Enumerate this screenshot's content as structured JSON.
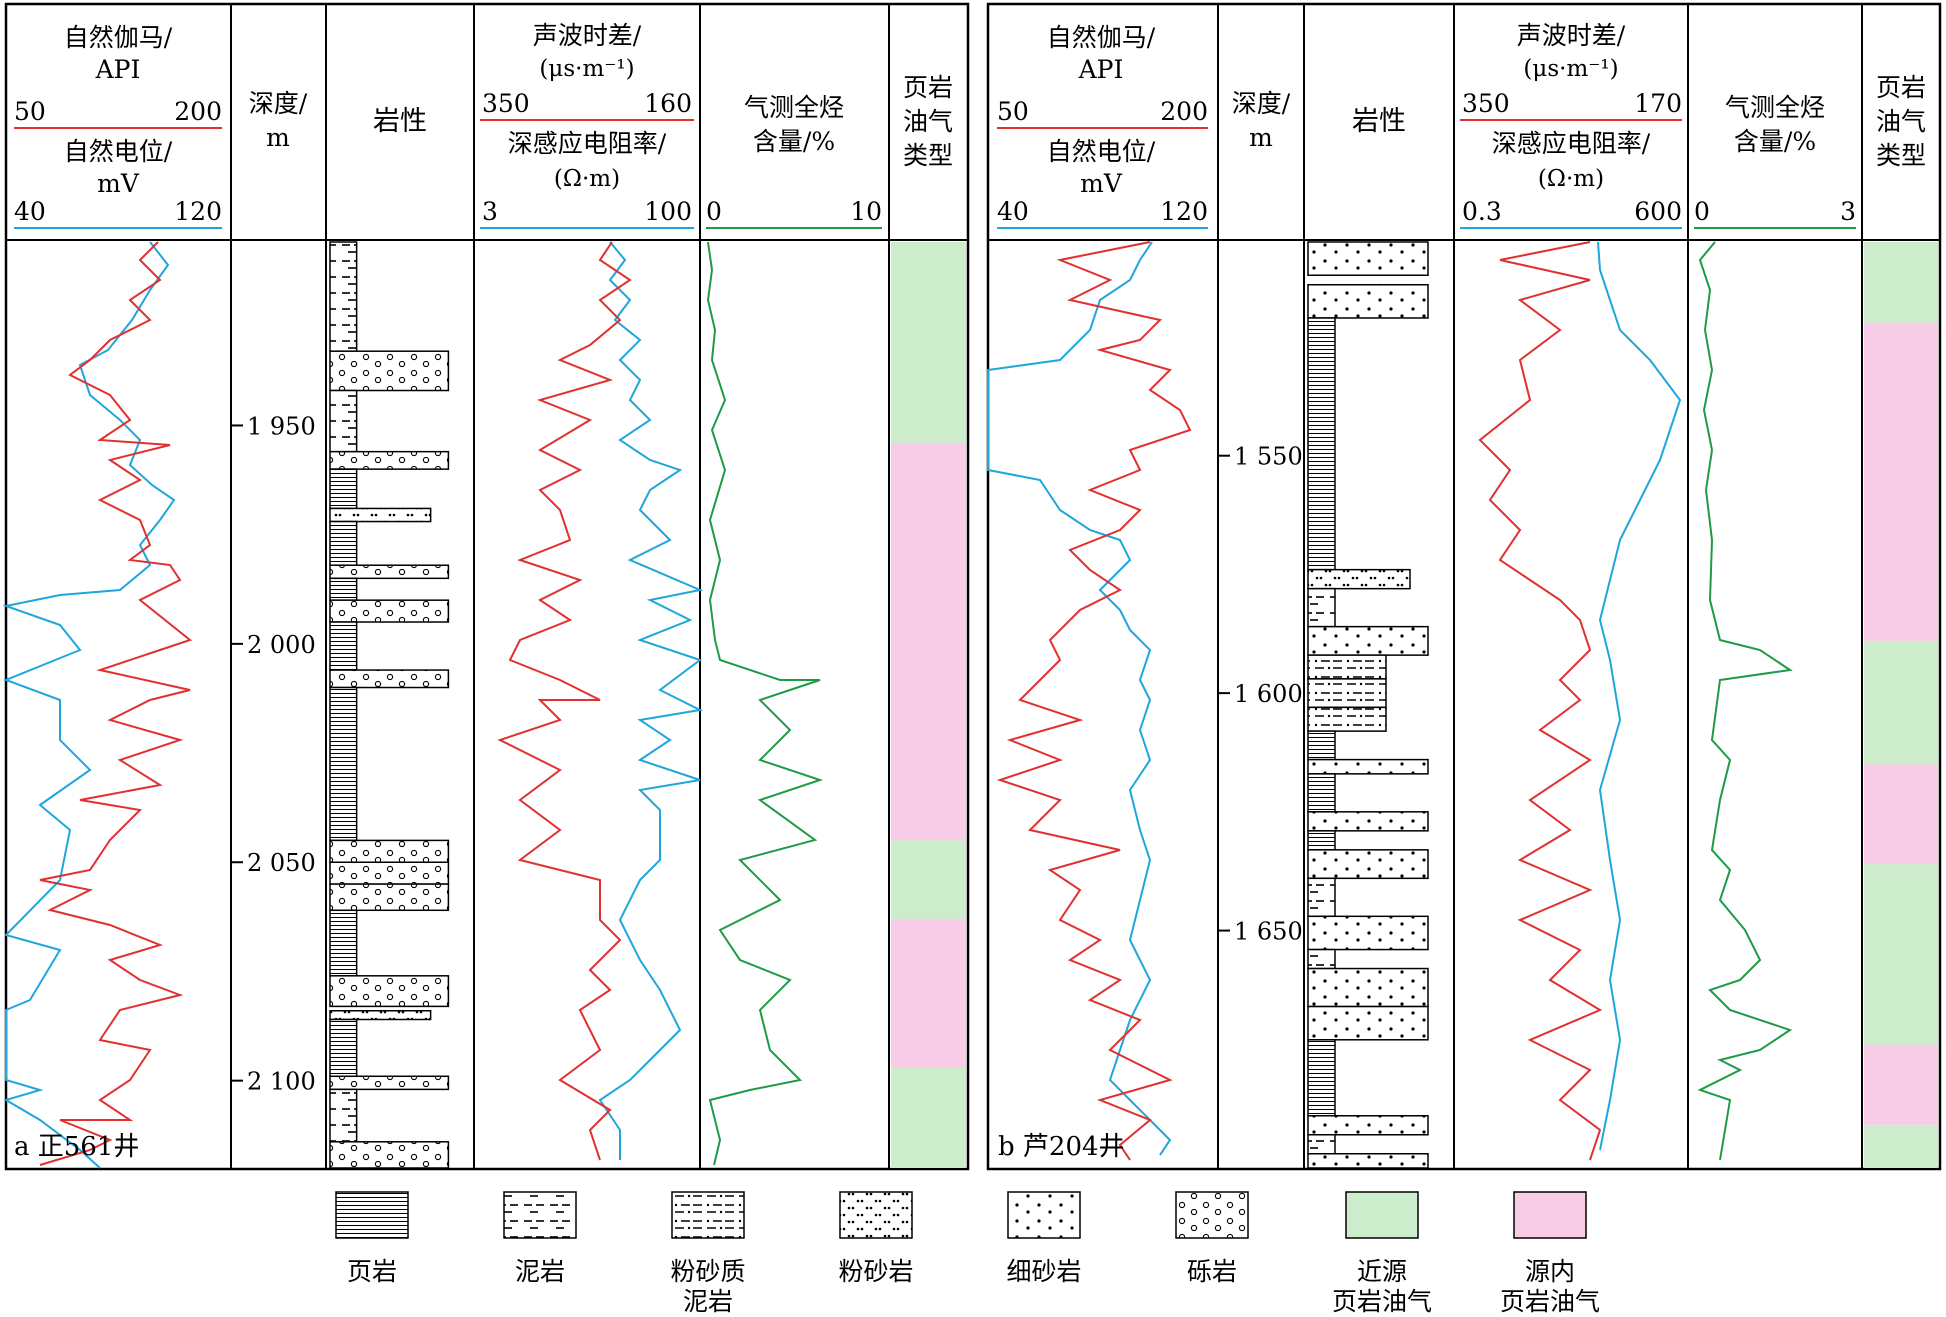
{
  "panels": [
    {
      "label": "a 正561井",
      "headers": {
        "gamma_title": [
          "自然伽马/",
          "API"
        ],
        "gamma_range": [
          "50",
          "200"
        ],
        "sp_title": [
          "自然电位/",
          "mV"
        ],
        "sp_range": [
          "40",
          "120"
        ],
        "depth_title": [
          "深度/",
          "m"
        ],
        "lith_title": "岩性",
        "ac_title": [
          "声波时差/",
          "(μs·m⁻¹)"
        ],
        "ac_range": [
          "350",
          "160"
        ],
        "res_title": [
          "深感应电阻率/",
          "(Ω·m)"
        ],
        "res_range": [
          "3",
          "100"
        ],
        "gas_title": [
          "气测全烃",
          "含量/%"
        ],
        "gas_range": [
          "0",
          "10"
        ],
        "type_title": [
          "页岩",
          "油气",
          "类型"
        ]
      },
      "depth_ticks": [
        "1 950",
        "2 000",
        "2 050",
        "2 100"
      ],
      "depth_range": [
        1908,
        2120
      ],
      "depth_values": [
        1950,
        2000,
        2050,
        2100
      ],
      "lithology": [
        {
          "top": 1908,
          "bottom": 1933,
          "rock": "泥岩"
        },
        {
          "top": 1933,
          "bottom": 1942,
          "rock": "砾岩"
        },
        {
          "top": 1942,
          "bottom": 1956,
          "rock": "泥岩"
        },
        {
          "top": 1956,
          "bottom": 1960,
          "rock": "砾岩"
        },
        {
          "top": 1960,
          "bottom": 1969,
          "rock": "页岩"
        },
        {
          "top": 1969,
          "bottom": 1972,
          "rock": "粉砂岩"
        },
        {
          "top": 1972,
          "bottom": 1982,
          "rock": "页岩"
        },
        {
          "top": 1982,
          "bottom": 1985,
          "rock": "砾岩"
        },
        {
          "top": 1985,
          "bottom": 1990,
          "rock": "页岩"
        },
        {
          "top": 1990,
          "bottom": 1995,
          "rock": "砾岩"
        },
        {
          "top": 1995,
          "bottom": 2006,
          "rock": "页岩"
        },
        {
          "top": 2006,
          "bottom": 2010,
          "rock": "砾岩"
        },
        {
          "top": 2010,
          "bottom": 2045,
          "rock": "页岩"
        },
        {
          "top": 2045,
          "bottom": 2050,
          "rock": "砾岩"
        },
        {
          "top": 2050,
          "bottom": 2055,
          "rock": "砾岩"
        },
        {
          "top": 2055,
          "bottom": 2061,
          "rock": "砾岩"
        },
        {
          "top": 2061,
          "bottom": 2076,
          "rock": "页岩"
        },
        {
          "top": 2076,
          "bottom": 2083,
          "rock": "砾岩"
        },
        {
          "top": 2084,
          "bottom": 2086,
          "rock": "粉砂岩"
        },
        {
          "top": 2086,
          "bottom": 2099,
          "rock": "页岩"
        },
        {
          "top": 2099,
          "bottom": 2102,
          "rock": "砾岩"
        },
        {
          "top": 2102,
          "bottom": 2114,
          "rock": "泥岩"
        },
        {
          "top": 2114,
          "bottom": 2120,
          "rock": "砾岩"
        }
      ],
      "oil_types": [
        {
          "top": 1908,
          "bottom": 1954,
          "kind": "近源"
        },
        {
          "top": 1954,
          "bottom": 2045,
          "kind": "源内"
        },
        {
          "top": 2045,
          "bottom": 2063,
          "kind": "近源"
        },
        {
          "top": 2063,
          "bottom": 2097,
          "kind": "源内"
        },
        {
          "top": 2097,
          "bottom": 2120,
          "kind": "近源"
        }
      ]
    },
    {
      "label": "b 芦204井",
      "headers": {
        "gamma_title": [
          "自然伽马/",
          "API"
        ],
        "gamma_range": [
          "50",
          "200"
        ],
        "sp_title": [
          "自然电位/",
          "mV"
        ],
        "sp_range": [
          "40",
          "120"
        ],
        "depth_title": [
          "深度/",
          "m"
        ],
        "lith_title": "岩性",
        "ac_title": [
          "声波时差/",
          "(μs·m⁻¹)"
        ],
        "ac_range": [
          "350",
          "170"
        ],
        "res_title": [
          "深感应电阻率/",
          "(Ω·m)"
        ],
        "res_range": [
          "0.3",
          "600"
        ],
        "gas_title": [
          "气测全烃",
          "含量/%"
        ],
        "gas_range": [
          "0",
          "3"
        ],
        "type_title": [
          "页岩",
          "油气",
          "类型"
        ]
      },
      "depth_ticks": [
        "1 550",
        "1 600",
        "1 650"
      ],
      "depth_range": [
        1505,
        1700
      ],
      "depth_values": [
        1550,
        1600,
        1650
      ],
      "lithology": [
        {
          "top": 1505,
          "bottom": 1512,
          "rock": "细砂岩"
        },
        {
          "top": 1514,
          "bottom": 1521,
          "rock": "细砂岩"
        },
        {
          "top": 1521,
          "bottom": 1574,
          "rock": "页岩"
        },
        {
          "top": 1574,
          "bottom": 1578,
          "rock": "粉砂岩"
        },
        {
          "top": 1578,
          "bottom": 1586,
          "rock": "泥岩"
        },
        {
          "top": 1586,
          "bottom": 1592,
          "rock": "细砂岩"
        },
        {
          "top": 1592,
          "bottom": 1597,
          "rock": "粉砂质泥岩"
        },
        {
          "top": 1597,
          "bottom": 1603,
          "rock": "粉砂质泥岩"
        },
        {
          "top": 1603,
          "bottom": 1608,
          "rock": "粉砂质泥岩"
        },
        {
          "top": 1608,
          "bottom": 1614,
          "rock": "页岩"
        },
        {
          "top": 1614,
          "bottom": 1617,
          "rock": "细砂岩"
        },
        {
          "top": 1617,
          "bottom": 1625,
          "rock": "页岩"
        },
        {
          "top": 1625,
          "bottom": 1629,
          "rock": "细砂岩"
        },
        {
          "top": 1629,
          "bottom": 1633,
          "rock": "页岩"
        },
        {
          "top": 1633,
          "bottom": 1639,
          "rock": "细砂岩"
        },
        {
          "top": 1639,
          "bottom": 1647,
          "rock": "泥岩"
        },
        {
          "top": 1647,
          "bottom": 1654,
          "rock": "细砂岩"
        },
        {
          "top": 1654,
          "bottom": 1658,
          "rock": "泥岩"
        },
        {
          "top": 1658,
          "bottom": 1666,
          "rock": "细砂岩"
        },
        {
          "top": 1666,
          "bottom": 1673,
          "rock": "细砂岩"
        },
        {
          "top": 1673,
          "bottom": 1689,
          "rock": "页岩"
        },
        {
          "top": 1689,
          "bottom": 1693,
          "rock": "细砂岩"
        },
        {
          "top": 1693,
          "bottom": 1697,
          "rock": "泥岩"
        },
        {
          "top": 1697,
          "bottom": 1701,
          "rock": "细砂岩"
        }
      ],
      "oil_types": [
        {
          "top": 1505,
          "bottom": 1522,
          "kind": "近源"
        },
        {
          "top": 1522,
          "bottom": 1589,
          "kind": "源内"
        },
        {
          "top": 1589,
          "bottom": 1615,
          "kind": "近源"
        },
        {
          "top": 1615,
          "bottom": 1636,
          "kind": "源内"
        },
        {
          "top": 1636,
          "bottom": 1674,
          "kind": "近源"
        },
        {
          "top": 1674,
          "bottom": 1691,
          "kind": "源内"
        },
        {
          "top": 1691,
          "bottom": 1701,
          "kind": "近源"
        }
      ]
    }
  ],
  "legend": [
    {
      "key": "shale",
      "label": [
        "页岩"
      ]
    },
    {
      "key": "mudstone",
      "label": [
        "泥岩"
      ]
    },
    {
      "key": "silty_mudstone",
      "label": [
        "粉砂质",
        "泥岩"
      ]
    },
    {
      "key": "siltstone",
      "label": [
        "粉砂岩"
      ]
    },
    {
      "key": "fine_sandstone",
      "label": [
        "细砂岩"
      ]
    },
    {
      "key": "conglomerate",
      "label": [
        "砾岩"
      ]
    },
    {
      "key": "near_source",
      "label": [
        "近源",
        "页岩油气"
      ]
    },
    {
      "key": "in_source",
      "label": [
        "源内",
        "页岩油气"
      ]
    }
  ],
  "colors": {
    "gamma": "#e03030",
    "sp": "#1fa6dc",
    "ac": "#e03030",
    "res": "#1fa6dc",
    "gas": "#1f9a45",
    "near_source": "#cdeccb",
    "in_source": "#f7cce6",
    "frame": "#000000"
  }
}
